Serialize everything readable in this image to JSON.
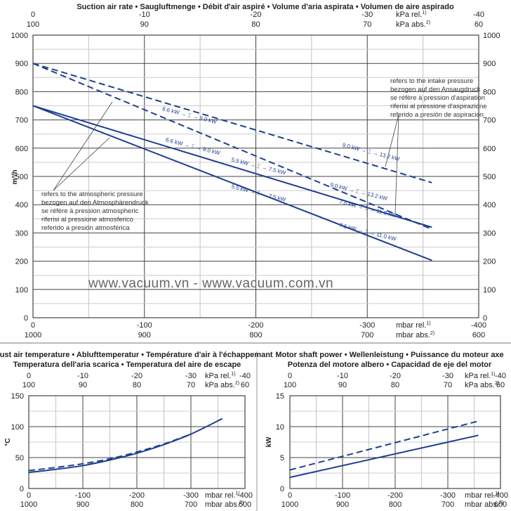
{
  "watermark": "www.vacuum.vn - www.vacuum.com.vn",
  "axis_units": {
    "kpa_rel": "kPa rel.",
    "kpa_rel_sup": "1)",
    "kpa_abs": "kPa abs.",
    "kpa_abs_sup": "2)",
    "mbar_rel": "mbar rel.",
    "mbar_rel_sup": "1)",
    "mbar_abs": "mbar abs.",
    "mbar_abs_sup": "2)"
  },
  "colors": {
    "line": "#1f3f8f",
    "grid_major": "#444444",
    "grid_minor": "#cccccc"
  },
  "chart_data": [
    {
      "id": "suction",
      "type": "line",
      "title": "Suction air rate • Saugluftmenge • Débit d'air aspiré • Volume d'aria aspirata • Volumen de aire aspirado",
      "ylabel": "m³/h",
      "xlim": [
        0,
        -400
      ],
      "ylim": [
        0,
        1000
      ],
      "grid": true,
      "yticks": [
        0,
        100,
        200,
        300,
        400,
        500,
        600,
        700,
        800,
        900,
        1000
      ],
      "xticks_mbar_rel": [
        "0",
        "-100",
        "-200",
        "-300",
        "-400"
      ],
      "xticks_mbar_abs": [
        "1000",
        "900",
        "800",
        "700",
        "600"
      ],
      "xticks_kpa_rel": [
        "0",
        "-10",
        "-20",
        "-30",
        "-40"
      ],
      "xticks_kpa_abs": [
        "100",
        "90",
        "80",
        "70",
        "60"
      ],
      "series": [
        {
          "name": "intake-upper",
          "style": "dashed",
          "x": [
            0,
            -358
          ],
          "y": [
            900,
            478
          ]
        },
        {
          "name": "intake-lower",
          "style": "dashed",
          "x": [
            0,
            -358
          ],
          "y": [
            900,
            313
          ]
        },
        {
          "name": "atm-upper",
          "style": "solid",
          "x": [
            0,
            -358
          ],
          "y": [
            750,
            320
          ]
        },
        {
          "name": "atm-lower",
          "style": "solid",
          "x": [
            0,
            -358
          ],
          "y": [
            750,
            203
          ]
        }
      ],
      "annotations": [
        {
          "text": "6.6 kW → ⌶ → 9.0 kW",
          "x": -140,
          "y": 710
        },
        {
          "text": "6.6 kW → ⌶ → 9.0 kW",
          "x": -143,
          "y": 600
        },
        {
          "text": "5.5 kW → ⌶ → 7.5 kW",
          "x": -202,
          "y": 530
        },
        {
          "text": "5.5 kW → ⌶ → 7.5 kW",
          "x": -202,
          "y": 435
        },
        {
          "text": "9.0 kW → ⌶ → 13.2 kW",
          "x": -303,
          "y": 580
        },
        {
          "text": "9.0 kW → ⌶ → 13.2 kW",
          "x": -292,
          "y": 440
        },
        {
          "text": "7.5 kW → ⌶ → 11.0 kW",
          "x": -300,
          "y": 380
        },
        {
          "text": "7.5 kW → ⌶ → 11.0 kW",
          "x": -300,
          "y": 297
        }
      ],
      "notes": {
        "intake": [
          "refers to the intake pressure",
          "bezogen auf den Ansaugdruck",
          "se réfère à pression d'aspiration",
          "riferisi al pressione d'aspirazione",
          "referido a presión de aspiracion"
        ],
        "atmospheric": [
          "refers to the atmospheric pressure",
          "bezogen auf den Atmosphärendruck",
          "se réfère à pression atmospheric",
          "riferisi al pressione atmosferico",
          "referido a presión atmosférica"
        ]
      }
    },
    {
      "id": "temperature",
      "type": "line",
      "title": [
        "Exhaust air temperature • Ablufttemperatur • Température d'air à l'échappemant",
        "Temperatura dell'aria scarica • Temperatura del aire de escape"
      ],
      "ylabel": "°C",
      "xlim": [
        0,
        -400
      ],
      "ylim": [
        0,
        150
      ],
      "grid": true,
      "yticks": [
        0,
        50,
        100,
        150
      ],
      "xticks_mbar_rel": [
        "0",
        "-100",
        "-200",
        "-300",
        "-400"
      ],
      "xticks_mbar_abs": [
        "1000",
        "900",
        "800",
        "700",
        "600"
      ],
      "xticks_kpa_rel": [
        "0",
        "-10",
        "-20",
        "-30",
        "-40"
      ],
      "xticks_kpa_abs": [
        "100",
        "90",
        "80",
        "70",
        "60"
      ],
      "series": [
        {
          "name": "solid",
          "style": "solid",
          "x": [
            0,
            -50,
            -100,
            -150,
            -200,
            -250,
            -300,
            -358
          ],
          "y": [
            26,
            31,
            37,
            46,
            57,
            71,
            88,
            113
          ]
        },
        {
          "name": "dashed",
          "style": "dashed",
          "x": [
            0,
            -50,
            -100,
            -150,
            -200,
            -250,
            -300
          ],
          "y": [
            29,
            34,
            40,
            48,
            59,
            72,
            88
          ]
        }
      ]
    },
    {
      "id": "power",
      "type": "line",
      "title": [
        "Motor shaft power • Wellenleistung • Puissance du moteur axe",
        "Potenza del motore albero • Capacidad de eje del motor"
      ],
      "ylabel": "kW",
      "xlim": [
        0,
        -400
      ],
      "ylim": [
        0,
        15
      ],
      "grid": true,
      "yticks": [
        0,
        5,
        10,
        15
      ],
      "xticks_mbar_rel": [
        "0",
        "-100",
        "-200",
        "-300",
        "-400"
      ],
      "xticks_mbar_abs": [
        "1000",
        "900",
        "800",
        "700",
        "600"
      ],
      "xticks_kpa_rel": [
        "0",
        "-10",
        "-20",
        "-30",
        "-40"
      ],
      "xticks_kpa_abs": [
        "100",
        "90",
        "80",
        "70",
        "60"
      ],
      "series": [
        {
          "name": "solid",
          "style": "solid",
          "x": [
            0,
            -358
          ],
          "y": [
            1.8,
            8.6
          ]
        },
        {
          "name": "dashed",
          "style": "dashed",
          "x": [
            0,
            -358
          ],
          "y": [
            3.0,
            10.9
          ]
        }
      ]
    }
  ]
}
